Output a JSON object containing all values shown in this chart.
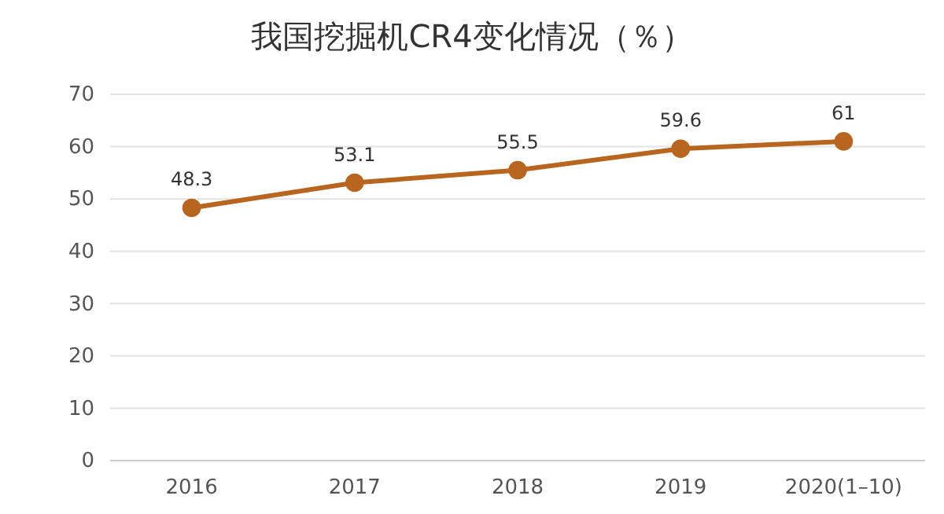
{
  "chart_data": {
    "type": "line",
    "title": "我国挖掘机CR4变化情况（％）",
    "categories": [
      "2016",
      "2017",
      "2018",
      "2019",
      "2020(1–10)"
    ],
    "series": [
      {
        "color": "#b8651f",
        "values": [
          48.3,
          53.1,
          55.5,
          59.6,
          61
        ]
      }
    ],
    "ylim": [
      0,
      70
    ],
    "yticks": [
      0,
      10,
      20,
      30,
      40,
      50,
      60,
      70
    ],
    "grid": "y",
    "marker": "circle",
    "data_labels": true,
    "line_style": "solid"
  }
}
